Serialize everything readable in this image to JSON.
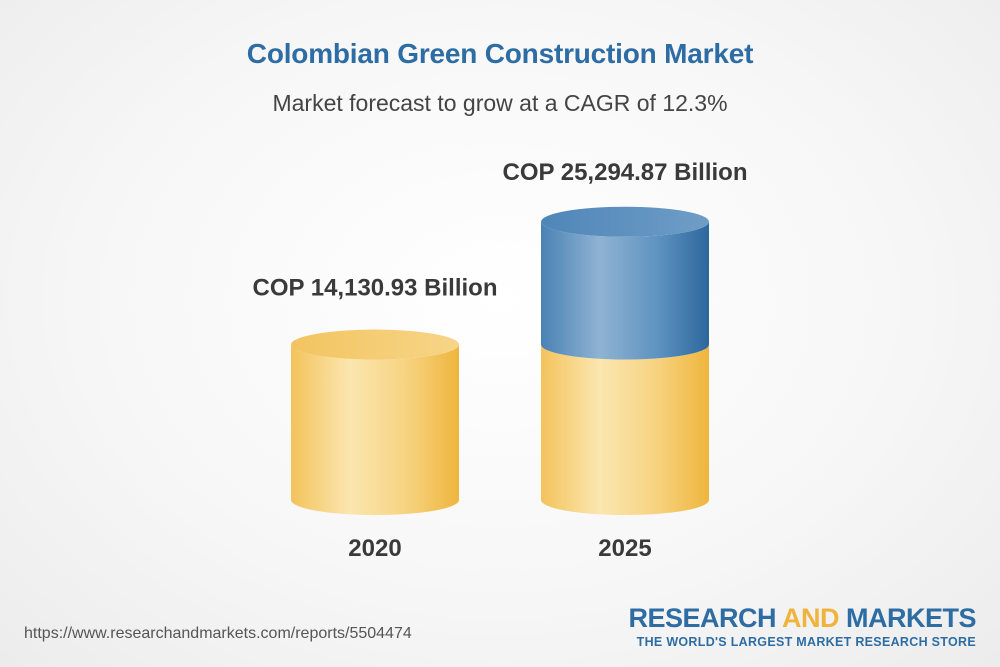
{
  "header": {
    "title": "Colombian Green Construction Market",
    "subtitle": "Market forecast to grow at a CAGR of 12.3%"
  },
  "chart_data": {
    "type": "bar",
    "title": "Colombian Green Construction Market",
    "subtitle": "Market forecast to grow at a CAGR of 12.3%",
    "categories": [
      "2020",
      "2025"
    ],
    "values": [
      14130.93,
      25294.87
    ],
    "value_labels": [
      "COP 14,130.93 Billion",
      "COP 25,294.87 Billion"
    ],
    "unit": "COP Billion",
    "cagr_percent": 12.3,
    "colors": {
      "base": "#f2c766",
      "growth": "#3a7ab0"
    }
  },
  "footer": {
    "url": "https://www.researchandmarkets.com/reports/5504474",
    "brand_research": "RESEARCH ",
    "brand_and": "AND",
    "brand_markets": " MARKETS",
    "tagline": "THE WORLD'S LARGEST MARKET RESEARCH STORE"
  }
}
